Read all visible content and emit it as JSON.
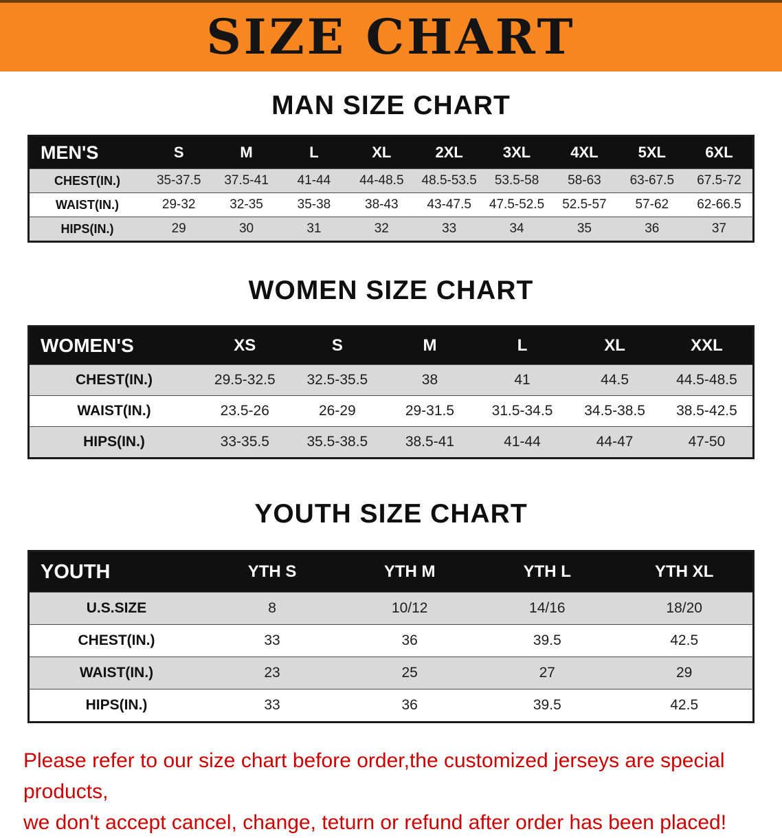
{
  "banner": {
    "title": "SIZE CHART"
  },
  "sections": {
    "men": {
      "heading": "MAN SIZE CHART",
      "table": {
        "header": [
          "MEN'S",
          "S",
          "M",
          "L",
          "XL",
          "2XL",
          "3XL",
          "4XL",
          "5XL",
          "6XL"
        ],
        "rows": [
          {
            "label": "CHEST(IN.)",
            "values": [
              "35-37.5",
              "37.5-41",
              "41-44",
              "44-48.5",
              "48.5-53.5",
              "53.5-58",
              "58-63",
              "63-67.5",
              "67.5-72"
            ]
          },
          {
            "label": "WAIST(IN.)",
            "values": [
              "29-32",
              "32-35",
              "35-38",
              "38-43",
              "43-47.5",
              "47.5-52.5",
              "52.5-57",
              "57-62",
              "62-66.5"
            ]
          },
          {
            "label": "HIPS(IN.)",
            "values": [
              "29",
              "30",
              "31",
              "32",
              "33",
              "34",
              "35",
              "36",
              "37"
            ]
          }
        ]
      }
    },
    "women": {
      "heading": "WOMEN SIZE CHART",
      "table": {
        "header": [
          "WOMEN'S",
          "XS",
          "S",
          "M",
          "L",
          "XL",
          "XXL"
        ],
        "rows": [
          {
            "label": "CHEST(IN.)",
            "values": [
              "29.5-32.5",
              "32.5-35.5",
              "38",
              "41",
              "44.5",
              "44.5-48.5"
            ]
          },
          {
            "label": "WAIST(IN.)",
            "values": [
              "23.5-26",
              "26-29",
              "29-31.5",
              "31.5-34.5",
              "34.5-38.5",
              "38.5-42.5"
            ]
          },
          {
            "label": "HIPS(IN.)",
            "values": [
              "33-35.5",
              "35.5-38.5",
              "38.5-41",
              "41-44",
              "44-47",
              "47-50"
            ]
          }
        ]
      }
    },
    "youth": {
      "heading": "YOUTH SIZE CHART",
      "table": {
        "header": [
          "YOUTH",
          "YTH S",
          "YTH M",
          "YTH L",
          "YTH XL"
        ],
        "rows": [
          {
            "label": "U.S.SIZE",
            "values": [
              "8",
              "10/12",
              "14/16",
              "18/20"
            ]
          },
          {
            "label": "CHEST(IN.)",
            "values": [
              "33",
              "36",
              "39.5",
              "42.5"
            ]
          },
          {
            "label": "WAIST(IN.)",
            "values": [
              "23",
              "25",
              "27",
              "29"
            ]
          },
          {
            "label": "HIPS(IN.)",
            "values": [
              "33",
              "36",
              "39.5",
              "42.5"
            ]
          }
        ]
      }
    }
  },
  "disclaimer": {
    "line1": "Please refer to our size chart before order,the customized jerseys are special products,",
    "line2": "we don't accept cancel, change, teturn or refund after order has been placed!"
  },
  "colors": {
    "banner_bg": "#f6861f",
    "table_header_bg": "#101010",
    "row_stripe": "#d9d9d9",
    "disclaimer_red": "#cc0000"
  }
}
